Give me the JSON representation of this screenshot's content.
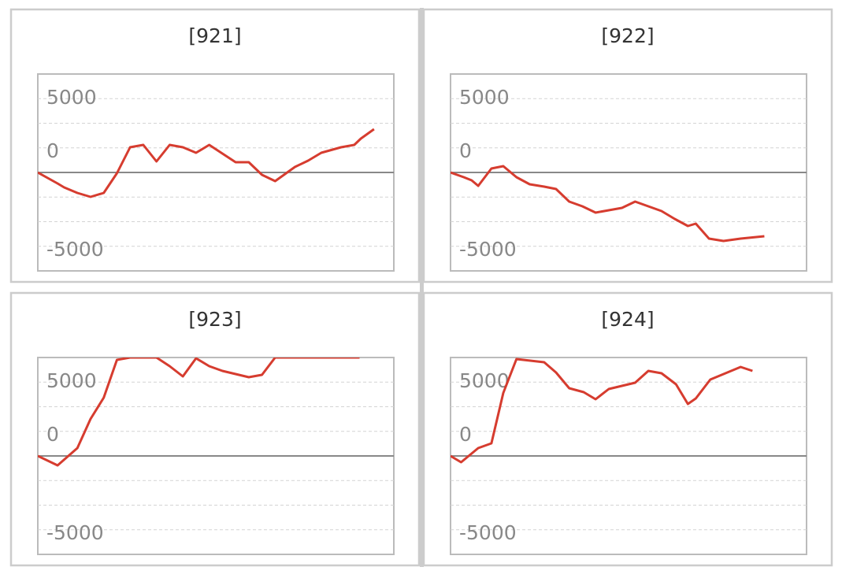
{
  "chart_data": [
    {
      "type": "line",
      "title": "[921]",
      "color": "#d63c2f",
      "x": [
        0,
        1.5,
        2,
        3,
        4,
        5,
        6,
        7,
        8,
        9,
        10,
        11,
        12,
        13,
        14,
        15,
        16,
        17,
        18,
        19.5,
        20.5,
        21.5,
        23,
        24,
        24.5,
        25.5
      ],
      "values": [
        0,
        -560,
        -760,
        -1040,
        -1240,
        -1040,
        -40,
        1280,
        1400,
        560,
        1400,
        1280,
        1000,
        1400,
        960,
        520,
        520,
        -120,
        -440,
        280,
        600,
        1000,
        1280,
        1400,
        1720,
        2200
      ],
      "xlim": [
        0,
        27
      ],
      "ylim": [
        -5000,
        5000
      ],
      "yticks": [
        -5000,
        0,
        5000
      ],
      "grid_step": 1250,
      "grid": true
    },
    {
      "type": "line",
      "title": "[922]",
      "color": "#d63c2f",
      "x": [
        0,
        1,
        1.6,
        2.1,
        3.1,
        4,
        5,
        6,
        7.1,
        8,
        9,
        10,
        11,
        12,
        13,
        14,
        15,
        16,
        17,
        18,
        18.6,
        19.6,
        20.7,
        22,
        23.8
      ],
      "values": [
        0,
        -240,
        -400,
        -680,
        200,
        320,
        -240,
        -600,
        -720,
        -840,
        -1480,
        -1720,
        -2040,
        -1920,
        -1800,
        -1480,
        -1720,
        -1960,
        -2360,
        -2720,
        -2600,
        -3360,
        -3480,
        -3360,
        -3240
      ],
      "xlim": [
        0,
        27
      ],
      "ylim": [
        -5000,
        5000
      ],
      "yticks": [
        -5000,
        0,
        5000
      ],
      "grid_step": 1250,
      "grid": true
    },
    {
      "type": "line",
      "title": "[923]",
      "color": "#d63c2f",
      "x": [
        0,
        1.5,
        3,
        4,
        5,
        6,
        7,
        9,
        10,
        11,
        12,
        13,
        14,
        16,
        17,
        18,
        24.4
      ],
      "values": [
        0,
        -480,
        400,
        1880,
        2960,
        4880,
        5000,
        5000,
        4560,
        4040,
        4960,
        4560,
        4320,
        4000,
        4120,
        5000,
        5000
      ],
      "xlim": [
        0,
        27
      ],
      "ylim": [
        -5000,
        5000
      ],
      "yticks": [
        -5000,
        0,
        5000
      ],
      "grid_step": 1250,
      "grid": true
    },
    {
      "type": "line",
      "title": "[924]",
      "color": "#d63c2f",
      "x": [
        0,
        0.8,
        2.1,
        3.1,
        4,
        5,
        7.1,
        8,
        9,
        10.1,
        11,
        12,
        14,
        15,
        16,
        17.1,
        18,
        18.6,
        19.7,
        22,
        22.9
      ],
      "values": [
        0,
        -320,
        400,
        640,
        3200,
        4920,
        4760,
        4240,
        3440,
        3240,
        2880,
        3400,
        3720,
        4320,
        4200,
        3640,
        2640,
        2920,
        3880,
        4520,
        4320
      ],
      "xlim": [
        0,
        27
      ],
      "ylim": [
        -5000,
        5000
      ],
      "yticks": [
        -5000,
        0,
        5000
      ],
      "grid_step": 1250,
      "grid": true
    }
  ]
}
